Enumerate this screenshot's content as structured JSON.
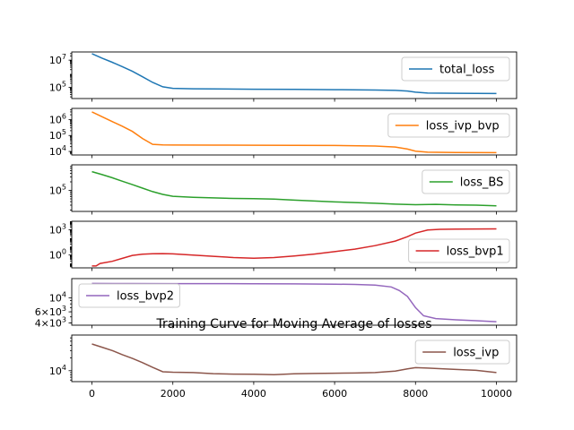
{
  "chart_data": {
    "type": "line",
    "title": "Training Curve for Moving Average of losses",
    "x_ticks": [
      "0",
      "2000",
      "4000",
      "6000",
      "8000",
      "10000"
    ],
    "xlim": [
      -500,
      10500
    ],
    "panels": [
      {
        "series": {
          "name": "total_loss",
          "color": "#1f77b4"
        },
        "yscale": "log",
        "ylim": [
          15000,
          40000000
        ],
        "y_ticks": [
          {
            "v": 10000000,
            "label": "10^7"
          },
          {
            "v": 100000,
            "label": "10^5"
          }
        ],
        "legend": "right",
        "points": [
          [
            0,
            30000000
          ],
          [
            250,
            14000000
          ],
          [
            500,
            7000000
          ],
          [
            750,
            3300000
          ],
          [
            1000,
            1500000
          ],
          [
            1250,
            600000
          ],
          [
            1500,
            230000
          ],
          [
            1750,
            110000
          ],
          [
            2000,
            85000
          ],
          [
            2500,
            78000
          ],
          [
            3000,
            76000
          ],
          [
            4000,
            73000
          ],
          [
            5000,
            70000
          ],
          [
            6000,
            67000
          ],
          [
            7000,
            63000
          ],
          [
            7500,
            60000
          ],
          [
            7800,
            54000
          ],
          [
            8000,
            44000
          ],
          [
            8300,
            38000
          ],
          [
            9000,
            36500
          ],
          [
            10000,
            35000
          ]
        ]
      },
      {
        "series": {
          "name": "loss_ivp_bvp",
          "color": "#ff7f0e"
        },
        "yscale": "log",
        "ylim": [
          6000,
          5000000
        ],
        "y_ticks": [
          {
            "v": 1000000,
            "label": "10^6"
          },
          {
            "v": 100000,
            "label": "10^5"
          },
          {
            "v": 10000,
            "label": "10^4"
          }
        ],
        "legend": "right",
        "points": [
          [
            0,
            3000000
          ],
          [
            250,
            1500000
          ],
          [
            500,
            750000
          ],
          [
            750,
            380000
          ],
          [
            1000,
            180000
          ],
          [
            1250,
            65000
          ],
          [
            1500,
            28000
          ],
          [
            1750,
            25500
          ],
          [
            2000,
            25200
          ],
          [
            3000,
            24800
          ],
          [
            4000,
            24500
          ],
          [
            5000,
            24200
          ],
          [
            6000,
            23500
          ],
          [
            7000,
            22000
          ],
          [
            7500,
            19000
          ],
          [
            7800,
            14000
          ],
          [
            8000,
            10500
          ],
          [
            8300,
            9000
          ],
          [
            9000,
            8600
          ],
          [
            10000,
            8400
          ]
        ]
      },
      {
        "series": {
          "name": "loss_BS",
          "color": "#2ca02c"
        },
        "yscale": "log",
        "ylim": [
          18000,
          800000
        ],
        "y_ticks": [
          {
            "v": 100000,
            "label": "10^5"
          }
        ],
        "legend": "right",
        "points": [
          [
            0,
            460000
          ],
          [
            250,
            360000
          ],
          [
            500,
            280000
          ],
          [
            750,
            210000
          ],
          [
            1000,
            160000
          ],
          [
            1250,
            120000
          ],
          [
            1500,
            90000
          ],
          [
            1750,
            72000
          ],
          [
            2000,
            62000
          ],
          [
            2500,
            57000
          ],
          [
            3000,
            54000
          ],
          [
            3500,
            52000
          ],
          [
            4000,
            51000
          ],
          [
            4500,
            49000
          ],
          [
            5000,
            45000
          ],
          [
            5500,
            42000
          ],
          [
            6000,
            39000
          ],
          [
            6500,
            37000
          ],
          [
            7000,
            35000
          ],
          [
            7500,
            32500
          ],
          [
            8000,
            31000
          ],
          [
            8500,
            32000
          ],
          [
            9000,
            30500
          ],
          [
            9500,
            30000
          ],
          [
            10000,
            28500
          ]
        ]
      },
      {
        "series": {
          "name": "loss_bvp1",
          "color": "#d62728"
        },
        "yscale": "log",
        "ylim": [
          0.03,
          10000
        ],
        "y_ticks": [
          {
            "v": 1000,
            "label": "10^3"
          },
          {
            "v": 1,
            "label": "10^0"
          }
        ],
        "legend": "right",
        "points": [
          [
            0,
            0.05
          ],
          [
            100,
            0.05
          ],
          [
            200,
            0.1
          ],
          [
            500,
            0.18
          ],
          [
            750,
            0.4
          ],
          [
            1000,
            0.9
          ],
          [
            1250,
            1.25
          ],
          [
            1500,
            1.4
          ],
          [
            1750,
            1.45
          ],
          [
            2000,
            1.35
          ],
          [
            2500,
            1.0
          ],
          [
            3000,
            0.7
          ],
          [
            3500,
            0.5
          ],
          [
            4000,
            0.42
          ],
          [
            4500,
            0.5
          ],
          [
            5000,
            0.75
          ],
          [
            5500,
            1.3
          ],
          [
            6000,
            2.5
          ],
          [
            6500,
            5
          ],
          [
            7000,
            13
          ],
          [
            7500,
            45
          ],
          [
            7800,
            150
          ],
          [
            8000,
            400
          ],
          [
            8300,
            900
          ],
          [
            8600,
            1100
          ],
          [
            9000,
            1200
          ],
          [
            10000,
            1250
          ]
        ]
      },
      {
        "series": {
          "name": "loss_bvp2",
          "color": "#9467bd"
        },
        "yscale": "log",
        "ylim": [
          3700,
          20000
        ],
        "y_ticks": [
          {
            "v": 10000,
            "label": "10^4"
          },
          {
            "v": 6000,
            "label": "6×10^3"
          },
          {
            "v": 4000,
            "label": "4×10^3"
          }
        ],
        "legend": "left",
        "points": [
          [
            0,
            16800
          ],
          [
            1000,
            16750
          ],
          [
            2000,
            16700
          ],
          [
            3000,
            16650
          ],
          [
            4000,
            16600
          ],
          [
            5000,
            16500
          ],
          [
            6000,
            16350
          ],
          [
            6500,
            16200
          ],
          [
            7000,
            15800
          ],
          [
            7400,
            14800
          ],
          [
            7600,
            13000
          ],
          [
            7800,
            10500
          ],
          [
            8000,
            7000
          ],
          [
            8200,
            5200
          ],
          [
            8500,
            4700
          ],
          [
            9000,
            4500
          ],
          [
            9500,
            4350
          ],
          [
            10000,
            4200
          ]
        ]
      },
      {
        "series": {
          "name": "loss_ivp",
          "color": "#8c564b"
        },
        "yscale": "log",
        "ylim": [
          5500,
          70000
        ],
        "y_ticks": [
          {
            "v": 10000,
            "label": "10^4"
          }
        ],
        "legend": "right",
        "points": [
          [
            0,
            43000
          ],
          [
            250,
            36000
          ],
          [
            500,
            30000
          ],
          [
            750,
            24000
          ],
          [
            1000,
            19500
          ],
          [
            1250,
            15500
          ],
          [
            1500,
            12000
          ],
          [
            1750,
            9400
          ],
          [
            2000,
            9200
          ],
          [
            2500,
            9000
          ],
          [
            3000,
            8500
          ],
          [
            3500,
            8300
          ],
          [
            4000,
            8200
          ],
          [
            4500,
            8000
          ],
          [
            5000,
            8400
          ],
          [
            5500,
            8600
          ],
          [
            6000,
            8700
          ],
          [
            6500,
            8800
          ],
          [
            7000,
            9000
          ],
          [
            7500,
            9800
          ],
          [
            7800,
            11000
          ],
          [
            8000,
            11800
          ],
          [
            8300,
            11500
          ],
          [
            8700,
            11000
          ],
          [
            9000,
            10700
          ],
          [
            9500,
            10200
          ],
          [
            10000,
            9000
          ]
        ]
      }
    ]
  }
}
